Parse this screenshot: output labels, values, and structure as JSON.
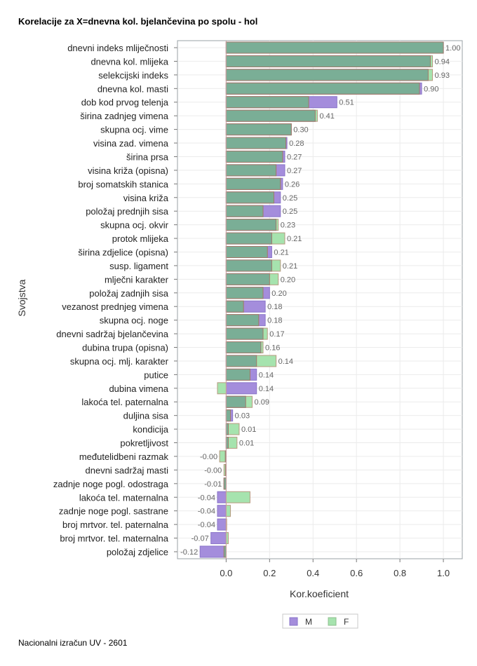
{
  "chart_data": {
    "type": "bar",
    "orientation": "horizontal",
    "title": "Korelacije za X=dnevna kol. bjelančevina po spolu - hol",
    "xlabel": "Kor.koeficient",
    "ylabel": "Svojstva",
    "xlim": [
      -0.224,
      1.087
    ],
    "xticks": [
      "0.0",
      "0.2",
      "0.4",
      "0.6",
      "0.8",
      "1.0"
    ],
    "grid": true,
    "legend_position": "bottom",
    "data_labels_series": "M",
    "categories": [
      "dnevni indeks mliječnosti",
      "dnevna kol. mlijeka",
      "selekcijski indeks",
      "dnevna kol. masti",
      "dob kod prvog telenja",
      "širina zadnjeg vimena",
      "skupna ocj. vime",
      "visina zad. vimena",
      "širina prsa",
      "visina križa (opisna)",
      "broj somatskih stanica",
      "visina križa",
      "položaj prednjih sisa",
      "skupna ocj. okvir",
      "protok mlijeka",
      "širina zdjelice (opisna)",
      "susp. ligament",
      "mlječni karakter",
      "položaj zadnjih sisa",
      "vezanost prednjeg vimena",
      "skupna ocj. noge",
      "dnevni sadržaj bjelančevina",
      "dubina trupa (opisna)",
      "skupna ocj. mlj. karakter",
      "putice",
      "dubina vimena",
      "lakoća tel. paternalna",
      "duljina sisa",
      "kondicija",
      "pokretljivost",
      "međutelidbeni razmak",
      "dnevni sadržaj masti",
      "zadnje noge pogl. odostraga",
      "lakoća tel. maternalna",
      "zadnje noge pogl. sastrane",
      "broj mrtvor. tel. paternalna",
      "broj mrtvor. tel. maternalna",
      "položaj zdjelice"
    ],
    "series": [
      {
        "name": "M",
        "color": "#a48ddc",
        "values": [
          1.0,
          0.94,
          0.93,
          0.9,
          0.51,
          0.41,
          0.3,
          0.28,
          0.27,
          0.27,
          0.26,
          0.25,
          0.25,
          0.23,
          0.21,
          0.21,
          0.21,
          0.2,
          0.2,
          0.18,
          0.18,
          0.17,
          0.16,
          0.14,
          0.14,
          0.14,
          0.09,
          0.03,
          0.01,
          0.01,
          -0.004,
          -0.003,
          -0.01,
          -0.04,
          -0.04,
          -0.04,
          -0.07,
          -0.12
        ]
      },
      {
        "name": "F",
        "color": "#a6e3ae",
        "values": [
          1.0,
          0.95,
          0.95,
          0.89,
          0.38,
          0.42,
          0.3,
          0.275,
          0.26,
          0.23,
          0.25,
          0.22,
          0.17,
          0.24,
          0.27,
          0.19,
          0.25,
          0.24,
          0.17,
          0.08,
          0.15,
          0.19,
          0.17,
          0.23,
          0.11,
          -0.04,
          0.12,
          0.02,
          0.06,
          0.05,
          -0.03,
          -0.01,
          -0.01,
          0.11,
          0.02,
          0.0,
          0.01,
          -0.01
        ]
      }
    ],
    "overlap_color": "#7aae96"
  },
  "footer": "Nacionalni izračun UV - 2601"
}
